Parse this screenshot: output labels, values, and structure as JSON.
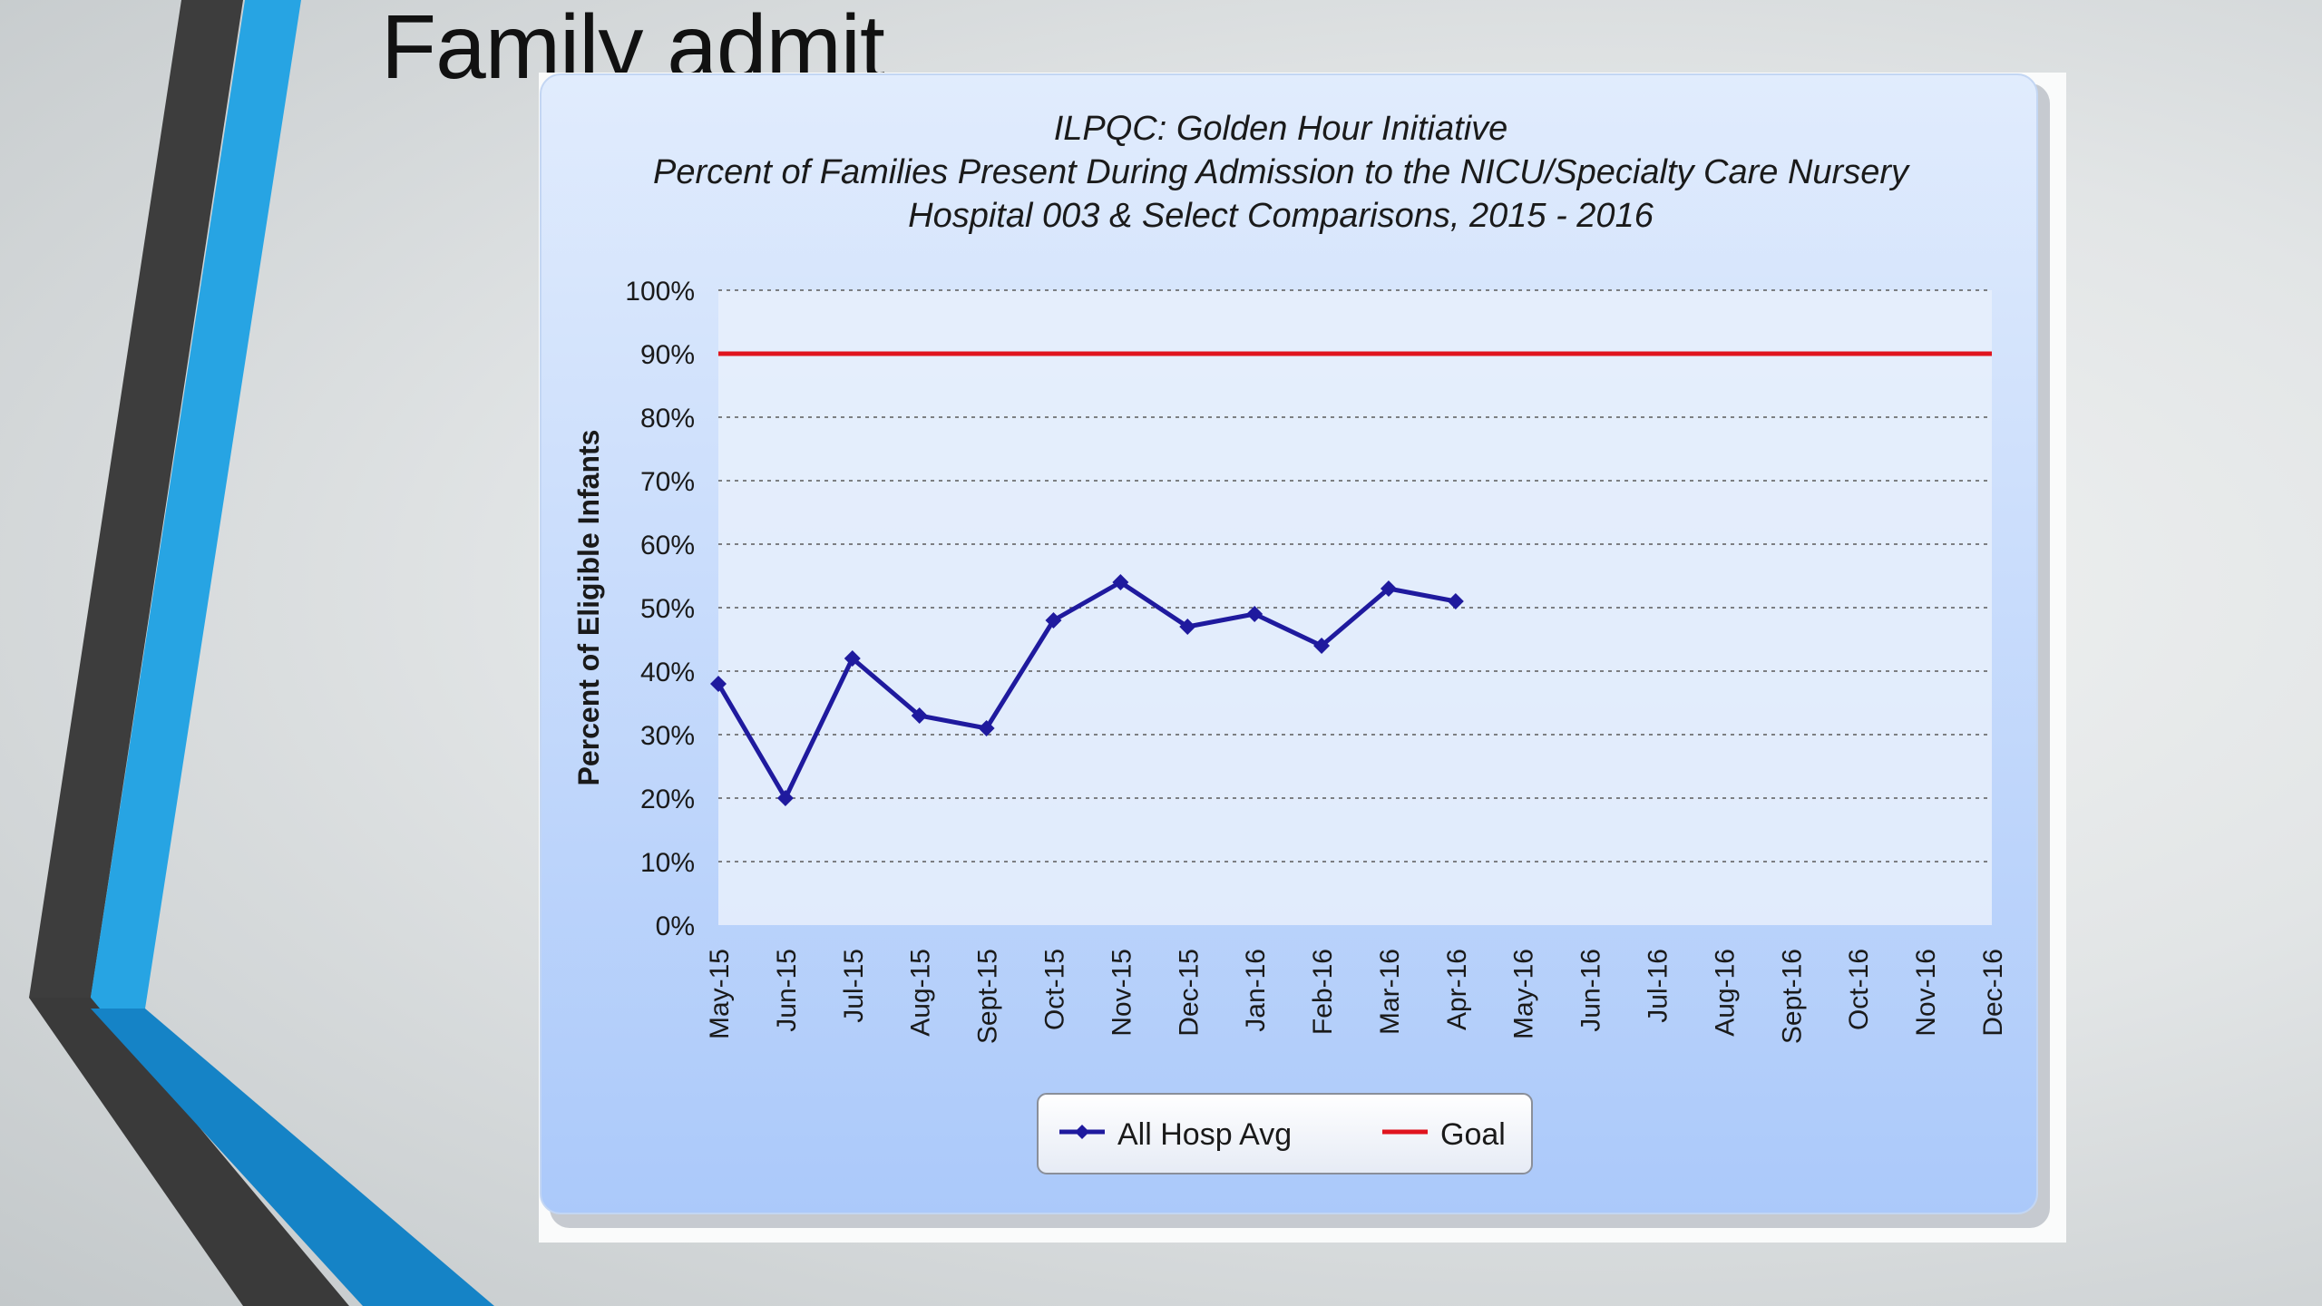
{
  "slide": {
    "title": "Family admit"
  },
  "colors": {
    "accent_blue": "#27a4e3",
    "dark_gray": "#3d3d3d",
    "panel_blue": "#afcdfb",
    "series_line": "#1f1a9e",
    "goal_line": "#e0141e"
  },
  "chart_data": {
    "type": "line",
    "title": "ILPQC: Golden Hour Initiative",
    "subtitle": [
      "Percent of Families Present During Admission to the NICU/Specialty Care Nursery",
      "Hospital 003 & Select Comparisons, 2015 - 2016"
    ],
    "xlabel": "",
    "ylabel": "Percent of Eligible Infants",
    "categories": [
      "May-15",
      "Jun-15",
      "Jul-15",
      "Aug-15",
      "Sept-15",
      "Oct-15",
      "Nov-15",
      "Dec-15",
      "Jan-16",
      "Feb-16",
      "Mar-16",
      "Apr-16",
      "May-16",
      "Jun-16",
      "Jul-16",
      "Aug-16",
      "Sept-16",
      "Oct-16",
      "Nov-16",
      "Dec-16"
    ],
    "ylim": [
      0,
      100
    ],
    "yticks": [
      "0%",
      "10%",
      "20%",
      "30%",
      "40%",
      "50%",
      "60%",
      "70%",
      "80%",
      "90%",
      "100%"
    ],
    "grid": true,
    "legend_position": "bottom",
    "series": [
      {
        "name": "All Hosp Avg",
        "color": "#1f1a9e",
        "marker": "diamond",
        "values": [
          38,
          20,
          42,
          33,
          31,
          48,
          54,
          47,
          49,
          44,
          53,
          51,
          null,
          null,
          null,
          null,
          null,
          null,
          null,
          null
        ]
      },
      {
        "name": "Goal",
        "color": "#e0141e",
        "marker": "none",
        "values": [
          90,
          90,
          90,
          90,
          90,
          90,
          90,
          90,
          90,
          90,
          90,
          90,
          90,
          90,
          90,
          90,
          90,
          90,
          90,
          90
        ]
      }
    ]
  }
}
